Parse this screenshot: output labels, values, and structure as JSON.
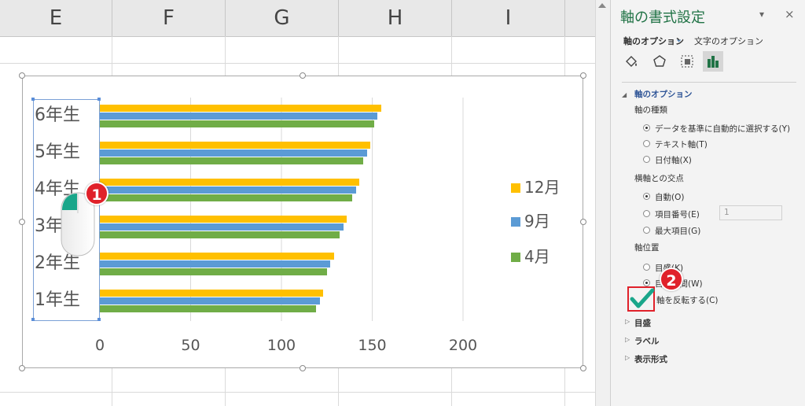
{
  "columns": [
    "E",
    "F",
    "G",
    "H",
    "I"
  ],
  "chart_data": {
    "type": "bar",
    "orientation": "horizontal",
    "categories": [
      "6年生",
      "5年生",
      "4年生",
      "3年生",
      "2年生",
      "1年生"
    ],
    "series": [
      {
        "name": "12月",
        "color": "#ffc000",
        "values": [
          155,
          149,
          143,
          136,
          129,
          123
        ]
      },
      {
        "name": "9月",
        "color": "#5b9bd5",
        "values": [
          153,
          147,
          141,
          134,
          127,
          121
        ]
      },
      {
        "name": "4月",
        "color": "#70ad47",
        "values": [
          151,
          145,
          139,
          132,
          125,
          119
        ]
      }
    ],
    "x_ticks": [
      "0",
      "50",
      "100",
      "150",
      "200"
    ],
    "xlim": [
      0,
      200
    ],
    "grid": "vertical major",
    "legend_position": "right"
  },
  "panel": {
    "title": "軸の書式設定",
    "tab_axis_options": "軸のオプション",
    "tab_text_options": "文字のオプション",
    "icons": [
      "fill-line-icon",
      "effects-pentagon-icon",
      "size-properties-icon",
      "axis-options-bars-icon"
    ],
    "section_axis_options": "軸のオプション",
    "axis_type_label": "軸の種類",
    "axis_type_auto": "データを基準に自動的に選択する(Y)",
    "axis_type_text": "テキスト軸(T)",
    "axis_type_date": "日付軸(X)",
    "cross_label": "横軸との交点",
    "cross_auto": "自動(O)",
    "cross_item": "項目番号(E)",
    "cross_item_value": "1",
    "cross_max": "最大項目(G)",
    "axis_position_label": "軸位置",
    "axis_pos_on": "目盛(K)",
    "axis_pos_between": "目盛の間(W)",
    "reverse_order": "軸を反転する(C)",
    "section_tickmarks": "目盛",
    "section_labels": "ラベル",
    "section_number": "表示形式",
    "close_glyph": "×",
    "dropdown_glyph": "▾"
  },
  "annotations": {
    "badge1": "1",
    "badge2": "2"
  }
}
